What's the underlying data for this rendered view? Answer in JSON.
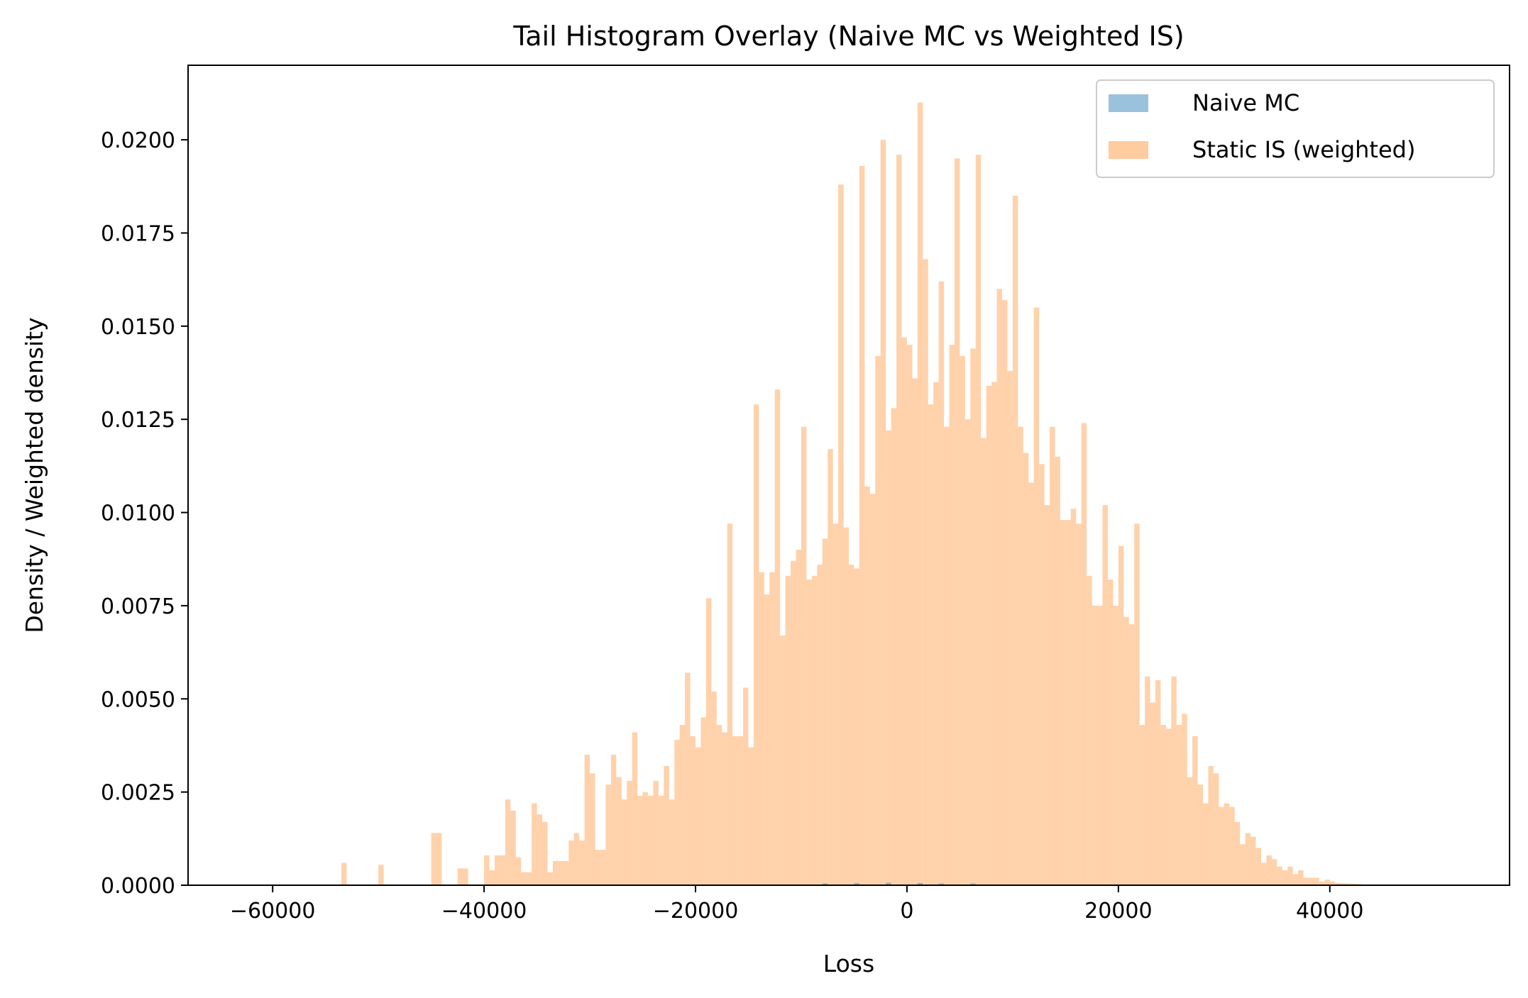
{
  "chart_data": {
    "type": "bar",
    "title": "Tail Histogram Overlay (Naive MC vs Weighted IS)",
    "xlabel": "Loss",
    "ylabel": "Density / Weighted density",
    "xlim": [
      -68000,
      57000
    ],
    "ylim": [
      0,
      0.022
    ],
    "xticks": [
      -60000,
      -40000,
      -20000,
      0,
      20000,
      40000
    ],
    "xtick_labels": [
      "−60000",
      "−40000",
      "−20000",
      "0",
      "20000",
      "40000"
    ],
    "yticks": [
      0,
      0.0025,
      0.005,
      0.0075,
      0.01,
      0.0125,
      0.015,
      0.0175,
      0.02
    ],
    "ytick_labels": [
      "0.0000",
      "0.0025",
      "0.0050",
      "0.0075",
      "0.0100",
      "0.0125",
      "0.0150",
      "0.0175",
      "0.0200"
    ],
    "grid": false,
    "legend": {
      "position": "top-right"
    },
    "bin_width": 500,
    "series": [
      {
        "name": "Naive MC",
        "color": "#1f77b4",
        "opacity": 0.4,
        "bins": [
          {
            "x": -8000,
            "y": 5e-05
          },
          {
            "x": -5000,
            "y": 6e-05
          },
          {
            "x": -2000,
            "y": 7e-05
          },
          {
            "x": 1000,
            "y": 6e-05
          },
          {
            "x": 3000,
            "y": 5e-05
          },
          {
            "x": 6000,
            "y": 5e-05
          }
        ]
      },
      {
        "name": "Static IS (weighted)",
        "color": "#ff7f0e",
        "opacity": 0.35,
        "bins": [
          {
            "x": -53500,
            "y": 0.0006
          },
          {
            "x": -50000,
            "y": 0.00055
          },
          {
            "x": -45000,
            "y": 0.0014
          },
          {
            "x": -44500,
            "y": 0.0014
          },
          {
            "x": -42500,
            "y": 0.00045
          },
          {
            "x": -42000,
            "y": 0.00045
          },
          {
            "x": -40000,
            "y": 0.0008
          },
          {
            "x": -39500,
            "y": 0.0004
          },
          {
            "x": -39000,
            "y": 0.0008
          },
          {
            "x": -38500,
            "y": 0.0008
          },
          {
            "x": -38000,
            "y": 0.0023
          },
          {
            "x": -37500,
            "y": 0.002
          },
          {
            "x": -37000,
            "y": 0.00075
          },
          {
            "x": -36500,
            "y": 0.00035
          },
          {
            "x": -36000,
            "y": 0.00035
          },
          {
            "x": -35500,
            "y": 0.0022
          },
          {
            "x": -35000,
            "y": 0.0019
          },
          {
            "x": -34500,
            "y": 0.0017
          },
          {
            "x": -34000,
            "y": 0.00035
          },
          {
            "x": -33500,
            "y": 0.00065
          },
          {
            "x": -33000,
            "y": 0.00065
          },
          {
            "x": -32500,
            "y": 0.00065
          },
          {
            "x": -32000,
            "y": 0.0012
          },
          {
            "x": -31500,
            "y": 0.0014
          },
          {
            "x": -31000,
            "y": 0.0012
          },
          {
            "x": -30500,
            "y": 0.0035
          },
          {
            "x": -30000,
            "y": 0.003
          },
          {
            "x": -29500,
            "y": 0.00095
          },
          {
            "x": -29000,
            "y": 0.00095
          },
          {
            "x": -28500,
            "y": 0.0027
          },
          {
            "x": -28000,
            "y": 0.0035
          },
          {
            "x": -27500,
            "y": 0.0029
          },
          {
            "x": -27000,
            "y": 0.0023
          },
          {
            "x": -26500,
            "y": 0.0028
          },
          {
            "x": -26000,
            "y": 0.0041
          },
          {
            "x": -25500,
            "y": 0.0024
          },
          {
            "x": -25000,
            "y": 0.0025
          },
          {
            "x": -24500,
            "y": 0.0024
          },
          {
            "x": -24000,
            "y": 0.0028
          },
          {
            "x": -23500,
            "y": 0.0024
          },
          {
            "x": -23000,
            "y": 0.0032
          },
          {
            "x": -22500,
            "y": 0.0023
          },
          {
            "x": -22000,
            "y": 0.0039
          },
          {
            "x": -21500,
            "y": 0.0043
          },
          {
            "x": -21000,
            "y": 0.0057
          },
          {
            "x": -20500,
            "y": 0.004
          },
          {
            "x": -20000,
            "y": 0.0037
          },
          {
            "x": -19500,
            "y": 0.0045
          },
          {
            "x": -19000,
            "y": 0.0077
          },
          {
            "x": -18500,
            "y": 0.0052
          },
          {
            "x": -18000,
            "y": 0.0043
          },
          {
            "x": -17500,
            "y": 0.0041
          },
          {
            "x": -17000,
            "y": 0.0097
          },
          {
            "x": -16500,
            "y": 0.004
          },
          {
            "x": -16000,
            "y": 0.004
          },
          {
            "x": -15500,
            "y": 0.0053
          },
          {
            "x": -15000,
            "y": 0.0037
          },
          {
            "x": -14500,
            "y": 0.0129
          },
          {
            "x": -14000,
            "y": 0.0084
          },
          {
            "x": -13500,
            "y": 0.0078
          },
          {
            "x": -13000,
            "y": 0.0084
          },
          {
            "x": -12500,
            "y": 0.0133
          },
          {
            "x": -12000,
            "y": 0.0067
          },
          {
            "x": -11500,
            "y": 0.0083
          },
          {
            "x": -11000,
            "y": 0.0087
          },
          {
            "x": -10500,
            "y": 0.009
          },
          {
            "x": -10000,
            "y": 0.0123
          },
          {
            "x": -9500,
            "y": 0.0082
          },
          {
            "x": -9000,
            "y": 0.0083
          },
          {
            "x": -8500,
            "y": 0.0086
          },
          {
            "x": -8000,
            "y": 0.0093
          },
          {
            "x": -7500,
            "y": 0.0117
          },
          {
            "x": -7000,
            "y": 0.0097
          },
          {
            "x": -6500,
            "y": 0.0188
          },
          {
            "x": -6000,
            "y": 0.0096
          },
          {
            "x": -5500,
            "y": 0.0086
          },
          {
            "x": -5000,
            "y": 0.0085
          },
          {
            "x": -4500,
            "y": 0.0193
          },
          {
            "x": -4000,
            "y": 0.0107
          },
          {
            "x": -3500,
            "y": 0.0105
          },
          {
            "x": -3000,
            "y": 0.0142
          },
          {
            "x": -2500,
            "y": 0.02
          },
          {
            "x": -2000,
            "y": 0.0122
          },
          {
            "x": -1500,
            "y": 0.0128
          },
          {
            "x": -1000,
            "y": 0.0196
          },
          {
            "x": -500,
            "y": 0.0147
          },
          {
            "x": 0,
            "y": 0.0145
          },
          {
            "x": 500,
            "y": 0.0136
          },
          {
            "x": 1000,
            "y": 0.021
          },
          {
            "x": 1500,
            "y": 0.0168
          },
          {
            "x": 2000,
            "y": 0.0129
          },
          {
            "x": 2500,
            "y": 0.0135
          },
          {
            "x": 3000,
            "y": 0.0162
          },
          {
            "x": 3500,
            "y": 0.0123
          },
          {
            "x": 4000,
            "y": 0.0145
          },
          {
            "x": 4500,
            "y": 0.0195
          },
          {
            "x": 5000,
            "y": 0.0142
          },
          {
            "x": 5500,
            "y": 0.0125
          },
          {
            "x": 6000,
            "y": 0.0144
          },
          {
            "x": 6500,
            "y": 0.0196
          },
          {
            "x": 7000,
            "y": 0.012
          },
          {
            "x": 7500,
            "y": 0.0134
          },
          {
            "x": 8000,
            "y": 0.0135
          },
          {
            "x": 8500,
            "y": 0.016
          },
          {
            "x": 9000,
            "y": 0.0157
          },
          {
            "x": 9500,
            "y": 0.0138
          },
          {
            "x": 10000,
            "y": 0.0185
          },
          {
            "x": 10500,
            "y": 0.0123
          },
          {
            "x": 11000,
            "y": 0.0116
          },
          {
            "x": 11500,
            "y": 0.0108
          },
          {
            "x": 12000,
            "y": 0.0155
          },
          {
            "x": 12500,
            "y": 0.0113
          },
          {
            "x": 13000,
            "y": 0.0102
          },
          {
            "x": 13500,
            "y": 0.0123
          },
          {
            "x": 14000,
            "y": 0.0115
          },
          {
            "x": 14500,
            "y": 0.0098
          },
          {
            "x": 15000,
            "y": 0.0098
          },
          {
            "x": 15500,
            "y": 0.0101
          },
          {
            "x": 16000,
            "y": 0.0097
          },
          {
            "x": 16500,
            "y": 0.0124
          },
          {
            "x": 17000,
            "y": 0.0083
          },
          {
            "x": 17500,
            "y": 0.0075
          },
          {
            "x": 18000,
            "y": 0.0075
          },
          {
            "x": 18500,
            "y": 0.0102
          },
          {
            "x": 19000,
            "y": 0.0082
          },
          {
            "x": 19500,
            "y": 0.0075
          },
          {
            "x": 20000,
            "y": 0.0091
          },
          {
            "x": 20500,
            "y": 0.0072
          },
          {
            "x": 21000,
            "y": 0.007
          },
          {
            "x": 21500,
            "y": 0.0097
          },
          {
            "x": 22000,
            "y": 0.0043
          },
          {
            "x": 22500,
            "y": 0.0056
          },
          {
            "x": 23000,
            "y": 0.0049
          },
          {
            "x": 23500,
            "y": 0.0055
          },
          {
            "x": 24000,
            "y": 0.0043
          },
          {
            "x": 24500,
            "y": 0.0042
          },
          {
            "x": 25000,
            "y": 0.0056
          },
          {
            "x": 25500,
            "y": 0.0043
          },
          {
            "x": 26000,
            "y": 0.0046
          },
          {
            "x": 26500,
            "y": 0.0029
          },
          {
            "x": 27000,
            "y": 0.004
          },
          {
            "x": 27500,
            "y": 0.0027
          },
          {
            "x": 28000,
            "y": 0.0022
          },
          {
            "x": 28500,
            "y": 0.0032
          },
          {
            "x": 29000,
            "y": 0.003
          },
          {
            "x": 29500,
            "y": 0.0021
          },
          {
            "x": 30000,
            "y": 0.0022
          },
          {
            "x": 30500,
            "y": 0.0021
          },
          {
            "x": 31000,
            "y": 0.0017
          },
          {
            "x": 31500,
            "y": 0.0011
          },
          {
            "x": 32000,
            "y": 0.0014
          },
          {
            "x": 32500,
            "y": 0.0013
          },
          {
            "x": 33000,
            "y": 0.001
          },
          {
            "x": 33500,
            "y": 0.0006
          },
          {
            "x": 34000,
            "y": 0.0008
          },
          {
            "x": 34500,
            "y": 0.0007
          },
          {
            "x": 35000,
            "y": 0.0005
          },
          {
            "x": 35500,
            "y": 0.0004
          },
          {
            "x": 36000,
            "y": 0.0005
          },
          {
            "x": 36500,
            "y": 0.0003
          },
          {
            "x": 37000,
            "y": 0.0004
          },
          {
            "x": 37500,
            "y": 0.0002
          },
          {
            "x": 38000,
            "y": 0.0002
          },
          {
            "x": 38500,
            "y": 0.0002
          },
          {
            "x": 39000,
            "y": 0.0001
          },
          {
            "x": 39500,
            "y": 0.00015
          },
          {
            "x": 40000,
            "y": 0.0001
          },
          {
            "x": 40500,
            "y": 6e-05
          },
          {
            "x": 41000,
            "y": 5e-05
          },
          {
            "x": 41500,
            "y": 5e-05
          },
          {
            "x": 42000,
            "y": 4e-05
          },
          {
            "x": 42500,
            "y": 3e-05
          }
        ]
      }
    ]
  }
}
